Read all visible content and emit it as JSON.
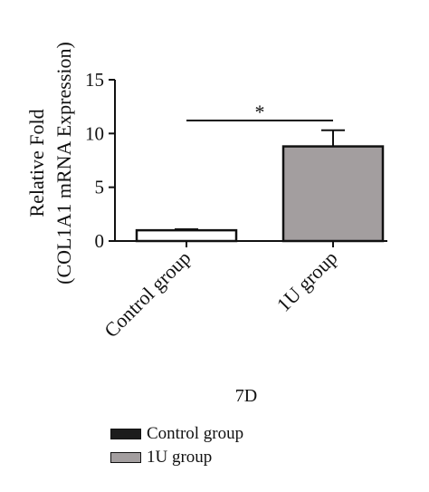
{
  "chart_data": {
    "type": "bar",
    "categories": [
      "Control group",
      "1U group"
    ],
    "values": [
      1.0,
      8.8
    ],
    "errors": [
      0.1,
      1.5
    ],
    "ylabel": "Relative Fold",
    "ylabel2": "(COL1A1 mRNA Expression)",
    "ylim": [
      0,
      15
    ],
    "yticks": [
      0,
      5,
      10,
      15
    ],
    "significance_label": "*",
    "xlabel": "7D",
    "colors": [
      "#ffffff",
      "#a39e9f"
    ],
    "legend": [
      {
        "label": "Control group",
        "color": "#1c1c1c"
      },
      {
        "label": "1U group",
        "color": "#a39e9f"
      }
    ],
    "legend_position": "bottom-center",
    "grid": false
  }
}
